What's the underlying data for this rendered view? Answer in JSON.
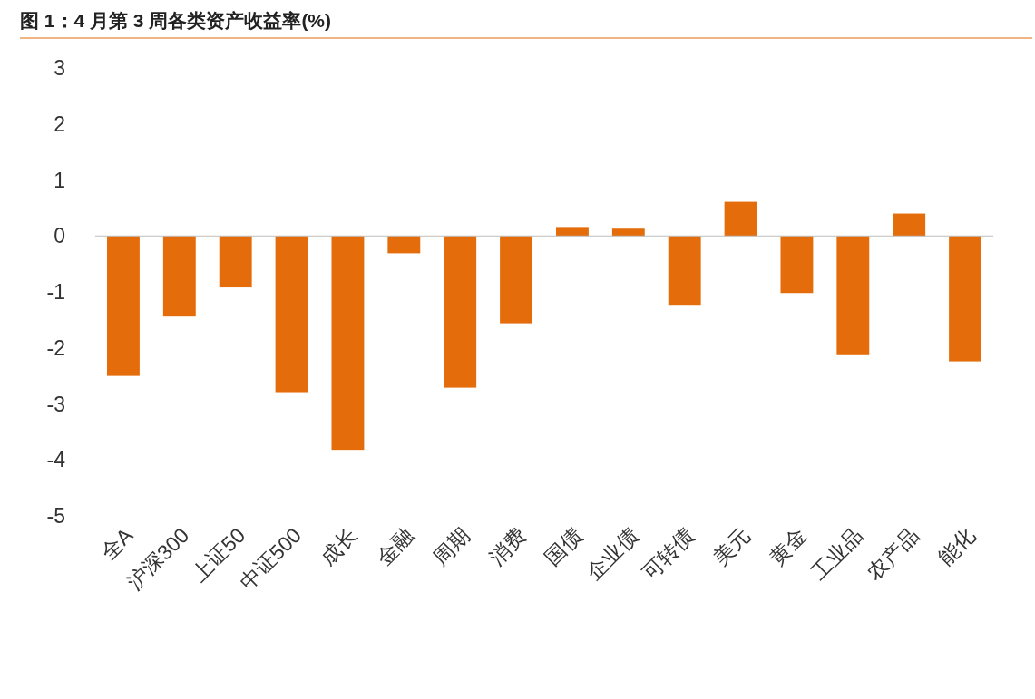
{
  "chart_data": {
    "type": "bar",
    "title": "图 1：4 月第 3 周各类资产收益率(%)",
    "categories": [
      "全A",
      "沪深300",
      "上证50",
      "中证500",
      "成长",
      "金融",
      "周期",
      "消费",
      "国债",
      "企业债",
      "可转债",
      "美元",
      "黄金",
      "工业品",
      "农产品",
      "能化"
    ],
    "values": [
      -2.5,
      -1.44,
      -0.92,
      -2.79,
      -3.82,
      -0.31,
      -2.71,
      -1.56,
      0.16,
      0.13,
      -1.23,
      0.61,
      -1.02,
      -2.13,
      0.4,
      -2.24
    ],
    "color": "#e46c0a",
    "ylim": [
      -5,
      3
    ],
    "yticks": [
      -5,
      -4,
      -3,
      -2,
      -1,
      0,
      1,
      2,
      3
    ]
  }
}
